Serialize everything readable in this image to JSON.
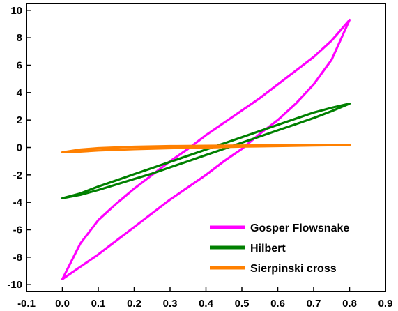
{
  "chart_data": {
    "type": "line",
    "title": "",
    "xlabel": "",
    "ylabel": "",
    "xlim": [
      -0.1,
      0.9
    ],
    "ylim": [
      -10.5,
      10.5
    ],
    "xticks": [
      -0.1,
      0.0,
      0.1,
      0.2,
      0.3,
      0.4,
      0.5,
      0.6,
      0.7,
      0.8,
      0.9
    ],
    "xtick_labels": [
      "-0.1",
      "0.0",
      "0.1",
      "0.2",
      "0.3",
      "0.4",
      "0.5",
      "0.6",
      "0.7",
      "0.8",
      "0.9"
    ],
    "yticks": [
      -10,
      -8,
      -6,
      -4,
      -2,
      0,
      2,
      4,
      6,
      8,
      10
    ],
    "ytick_labels": [
      "-10",
      "-8",
      "-6",
      "-4",
      "-2",
      "0",
      "2",
      "4",
      "6",
      "8",
      "10"
    ],
    "grid": false,
    "legend_position": "bottom-right",
    "series": [
      {
        "name": "Gosper Flowsnake",
        "color": "#ff00ff",
        "upper": [
          [
            0.0,
            -9.6
          ],
          [
            0.05,
            -7.0
          ],
          [
            0.1,
            -5.3
          ],
          [
            0.15,
            -4.1
          ],
          [
            0.2,
            -3.0
          ],
          [
            0.25,
            -2.0
          ],
          [
            0.3,
            -1.0
          ],
          [
            0.35,
            -0.1
          ],
          [
            0.4,
            0.9
          ],
          [
            0.45,
            1.8
          ],
          [
            0.5,
            2.7
          ],
          [
            0.55,
            3.6
          ],
          [
            0.6,
            4.6
          ],
          [
            0.65,
            5.6
          ],
          [
            0.7,
            6.6
          ],
          [
            0.75,
            7.8
          ],
          [
            0.8,
            9.3
          ]
        ],
        "lower": [
          [
            0.0,
            -9.6
          ],
          [
            0.05,
            -8.7
          ],
          [
            0.1,
            -7.8
          ],
          [
            0.15,
            -6.8
          ],
          [
            0.2,
            -5.8
          ],
          [
            0.25,
            -4.8
          ],
          [
            0.3,
            -3.8
          ],
          [
            0.35,
            -2.9
          ],
          [
            0.4,
            -2.0
          ],
          [
            0.45,
            -1.0
          ],
          [
            0.5,
            -0.1
          ],
          [
            0.55,
            1.0
          ],
          [
            0.6,
            2.0
          ],
          [
            0.65,
            3.2
          ],
          [
            0.7,
            4.6
          ],
          [
            0.75,
            6.4
          ],
          [
            0.8,
            9.3
          ]
        ]
      },
      {
        "name": "Hilbert",
        "color": "#008000",
        "upper": [
          [
            0.0,
            -3.7
          ],
          [
            0.05,
            -3.35
          ],
          [
            0.1,
            -2.85
          ],
          [
            0.15,
            -2.4
          ],
          [
            0.2,
            -1.95
          ],
          [
            0.25,
            -1.5
          ],
          [
            0.3,
            -1.05
          ],
          [
            0.35,
            -0.6
          ],
          [
            0.4,
            -0.15
          ],
          [
            0.45,
            0.3
          ],
          [
            0.5,
            0.75
          ],
          [
            0.55,
            1.2
          ],
          [
            0.6,
            1.65
          ],
          [
            0.65,
            2.1
          ],
          [
            0.7,
            2.55
          ],
          [
            0.75,
            2.9
          ],
          [
            0.8,
            3.2
          ]
        ],
        "lower": [
          [
            0.0,
            -3.7
          ],
          [
            0.05,
            -3.45
          ],
          [
            0.1,
            -3.1
          ],
          [
            0.15,
            -2.7
          ],
          [
            0.2,
            -2.3
          ],
          [
            0.25,
            -1.9
          ],
          [
            0.3,
            -1.45
          ],
          [
            0.35,
            -1.0
          ],
          [
            0.4,
            -0.55
          ],
          [
            0.45,
            -0.1
          ],
          [
            0.5,
            0.35
          ],
          [
            0.55,
            0.8
          ],
          [
            0.6,
            1.25
          ],
          [
            0.65,
            1.7
          ],
          [
            0.7,
            2.15
          ],
          [
            0.75,
            2.65
          ],
          [
            0.8,
            3.2
          ]
        ]
      },
      {
        "name": "Sierpinski cross",
        "color": "#ff8000",
        "upper": [
          [
            0.0,
            -0.35
          ],
          [
            0.05,
            -0.15
          ],
          [
            0.1,
            -0.05
          ],
          [
            0.2,
            0.05
          ],
          [
            0.3,
            0.1
          ],
          [
            0.4,
            0.12
          ],
          [
            0.5,
            0.14
          ],
          [
            0.6,
            0.16
          ],
          [
            0.7,
            0.18
          ],
          [
            0.8,
            0.2
          ]
        ],
        "lower": [
          [
            0.0,
            -0.35
          ],
          [
            0.05,
            -0.3
          ],
          [
            0.1,
            -0.22
          ],
          [
            0.2,
            -0.12
          ],
          [
            0.3,
            -0.05
          ],
          [
            0.4,
            0.0
          ],
          [
            0.5,
            0.06
          ],
          [
            0.6,
            0.1
          ],
          [
            0.7,
            0.14
          ],
          [
            0.8,
            0.18
          ]
        ]
      }
    ]
  }
}
